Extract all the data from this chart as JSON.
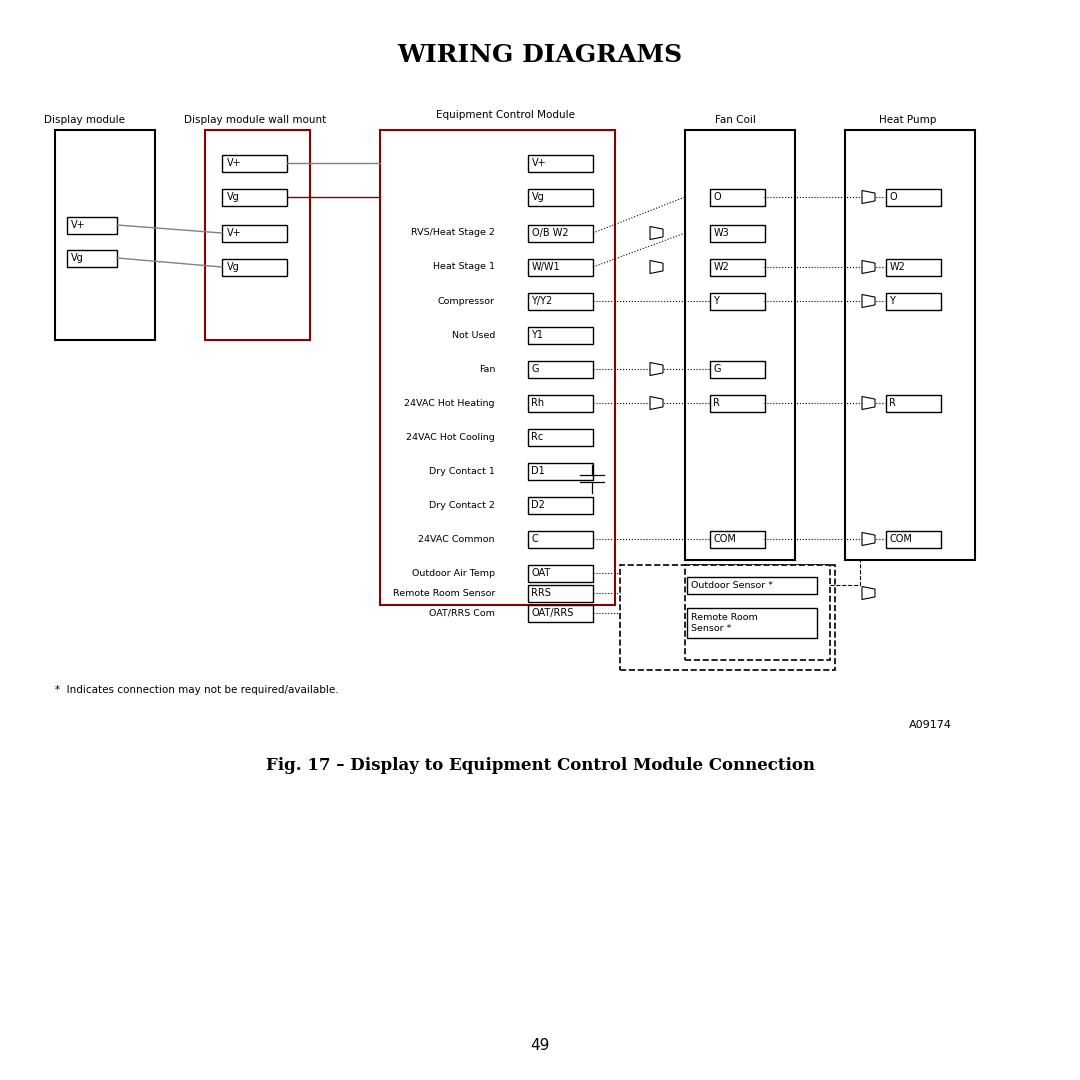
{
  "title": "WIRING DIAGRAMS",
  "fig_caption": "Fig. 17 – Display to Equipment Control Module Connection",
  "fig_note": "*  Indicates connection may not be required/available.",
  "fig_id": "A09174",
  "page_num": "49",
  "col_headers": [
    "Display module",
    "Display module wall mount",
    "Equipment Control Module",
    "Fan Coil",
    "Heat Pump"
  ],
  "ecm_terminals": [
    "V+",
    "Vg",
    "O/B W2",
    "W/W1",
    "Y/Y2",
    "Y1",
    "G",
    "Rh",
    "Rc",
    "D1",
    "D2",
    "C",
    "",
    "OAT",
    "RRS",
    "OAT/RRS"
  ],
  "ecm_labels": [
    "",
    "",
    "RVS/Heat Stage 2",
    "Heat Stage 1",
    "Compressor",
    "Not Used",
    "Fan",
    "24VAC Hot Heating",
    "24VAC Hot Cooling",
    "Dry Contact 1",
    "Dry Contact 2",
    "24VAC Common",
    "",
    "Outdoor Air Temp",
    "Remote Room Sensor",
    "OAT/RRS Com"
  ],
  "fc_terminals": [
    "",
    "",
    "O",
    "W3",
    "W2",
    "Y",
    "",
    "G",
    "",
    "R",
    "",
    "COM",
    "",
    "",
    "Outdoor Sensor *",
    "Remote Room\nSensor *"
  ],
  "hp_terminals": [
    "",
    "",
    "O",
    "",
    "W2",
    "Y",
    "",
    "",
    "R",
    "",
    "",
    "COM",
    "",
    "",
    "",
    ""
  ],
  "display_module_terminals": [
    "V+",
    "Vg"
  ],
  "wall_mount_terminals": [
    "V+",
    "Vg",
    "V+",
    "Vg"
  ]
}
